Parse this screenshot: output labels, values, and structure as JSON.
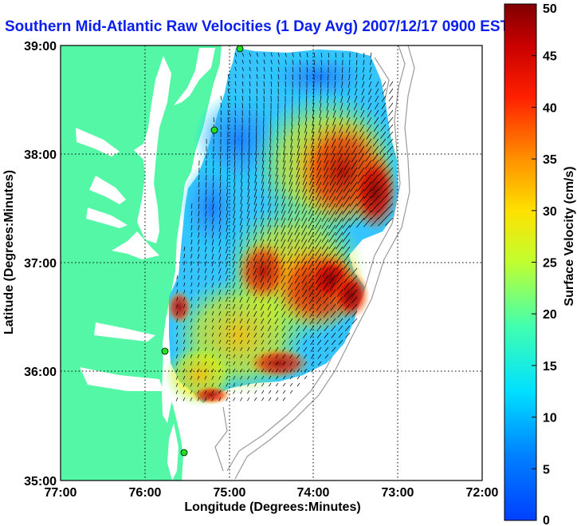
{
  "chart_data": {
    "type": "heatmap",
    "title": "Southern Mid-Atlantic Raw Velocities (1 Day Avg) 2007/12/17 0900 EST",
    "xlabel": "Longitude (Degrees:Minutes)",
    "ylabel": "Latitude (Degrees:Minutes)",
    "x_ticks": [
      "77:00",
      "76:00",
      "75:00",
      "74:00",
      "73:00",
      "72:00"
    ],
    "y_ticks": [
      "39:00",
      "38:00",
      "37:00",
      "36:00",
      "35:00"
    ],
    "xlim": [
      -77,
      -72
    ],
    "ylim": [
      35,
      39
    ],
    "grid": "dotted",
    "colorbar": {
      "label": "Surface Velocity (cm/s)",
      "range": [
        0,
        50
      ],
      "ticks": [
        "0",
        "5",
        "10",
        "15",
        "20",
        "25",
        "30",
        "35",
        "40",
        "45",
        "50"
      ],
      "colormap": "jet"
    },
    "stations": [
      {
        "lon": -75.12,
        "lat": 38.94
      },
      {
        "lon": -75.17,
        "lat": 38.21
      },
      {
        "lon": -75.72,
        "lat": 36.18
      },
      {
        "lon": -75.53,
        "lat": 35.25
      }
    ]
  }
}
